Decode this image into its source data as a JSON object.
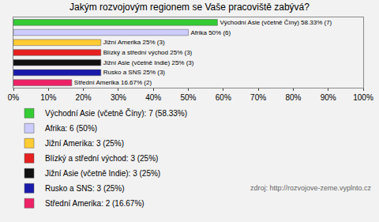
{
  "chart_data": {
    "type": "bar",
    "orientation": "horizontal",
    "title": "Jakým rozvojovým regionem se Vaše pracoviště zabývá?",
    "categories": [
      "Východní Asie (včetně Číny)",
      "Afrika",
      "Jižní Amerika",
      "Blízký a střední východ",
      "Jižní Asie (včetně Indie)",
      "Rusko a SNS",
      "Střední Amerika"
    ],
    "series": [
      {
        "name": "Východní Asie (včetně Číny): 7 (58.33%)",
        "color": "#33cc33",
        "values": [
          58.33,
          null,
          null,
          null,
          null,
          null,
          null
        ],
        "value_labels": [
          "Východní Asie (včetně Číny) 58.33% (7)",
          null,
          null,
          null,
          null,
          null,
          null
        ]
      },
      {
        "name": "Afrika: 6 (50%)",
        "color": "#ccccff",
        "values": [
          null,
          50,
          null,
          null,
          null,
          null,
          null
        ],
        "value_labels": [
          null,
          "Afrika 50% (6)",
          null,
          null,
          null,
          null,
          null
        ]
      },
      {
        "name": "Jižní Amerika: 3 (25%)",
        "color": "#ffcc33",
        "values": [
          null,
          null,
          25,
          null,
          null,
          null,
          null
        ],
        "value_labels": [
          null,
          null,
          "Jižní Amerika 25% (3)",
          null,
          null,
          null,
          null
        ]
      },
      {
        "name": "Blízký a střední východ: 3 (25%)",
        "color": "#e62020",
        "values": [
          null,
          null,
          null,
          25,
          null,
          null,
          null
        ],
        "value_labels": [
          null,
          null,
          null,
          "Blízký a střední východ 25% (3)",
          null,
          null,
          null
        ]
      },
      {
        "name": "Jižní Asie (včetně Indie): 3 (25%)",
        "color": "#111111",
        "values": [
          null,
          null,
          null,
          null,
          25,
          null,
          null
        ],
        "value_labels": [
          null,
          null,
          null,
          null,
          "Jižní Asie (včetně Indie) 25% (3)",
          null,
          null
        ]
      },
      {
        "name": "Rusko a SNS: 3 (25%)",
        "color": "#1a1aaa",
        "values": [
          null,
          null,
          null,
          null,
          null,
          25,
          null
        ],
        "value_labels": [
          null,
          null,
          null,
          null,
          null,
          "Rusko a SNS 25% (3)",
          null
        ]
      },
      {
        "name": "Střední Amerika: 2 (16.67%)",
        "color": "#ee2266",
        "values": [
          null,
          null,
          null,
          null,
          null,
          null,
          16.67
        ],
        "value_labels": [
          null,
          null,
          null,
          null,
          null,
          null,
          "Střední Amerika 16.67% (2)"
        ]
      }
    ],
    "xlim": [
      0,
      100
    ],
    "xticks": [
      {
        "value": 0,
        "label": "0%"
      },
      {
        "value": 10,
        "label": "10%"
      },
      {
        "value": 20,
        "label": "20%"
      },
      {
        "value": 30,
        "label": "30%"
      },
      {
        "value": 40,
        "label": "40%"
      },
      {
        "value": 50,
        "label": "50%"
      },
      {
        "value": 60,
        "label": "60%"
      },
      {
        "value": 70,
        "label": "70%"
      },
      {
        "value": 80,
        "label": "80%"
      },
      {
        "value": 90,
        "label": "90%"
      },
      {
        "value": 100,
        "label": "100%"
      }
    ],
    "grid": false,
    "legend": "bottom-left",
    "data_labels": true,
    "tick_labels": "x",
    "annotations": [
      "zdroj: http://rozvojove-zeme.vyplnto.cz"
    ]
  }
}
